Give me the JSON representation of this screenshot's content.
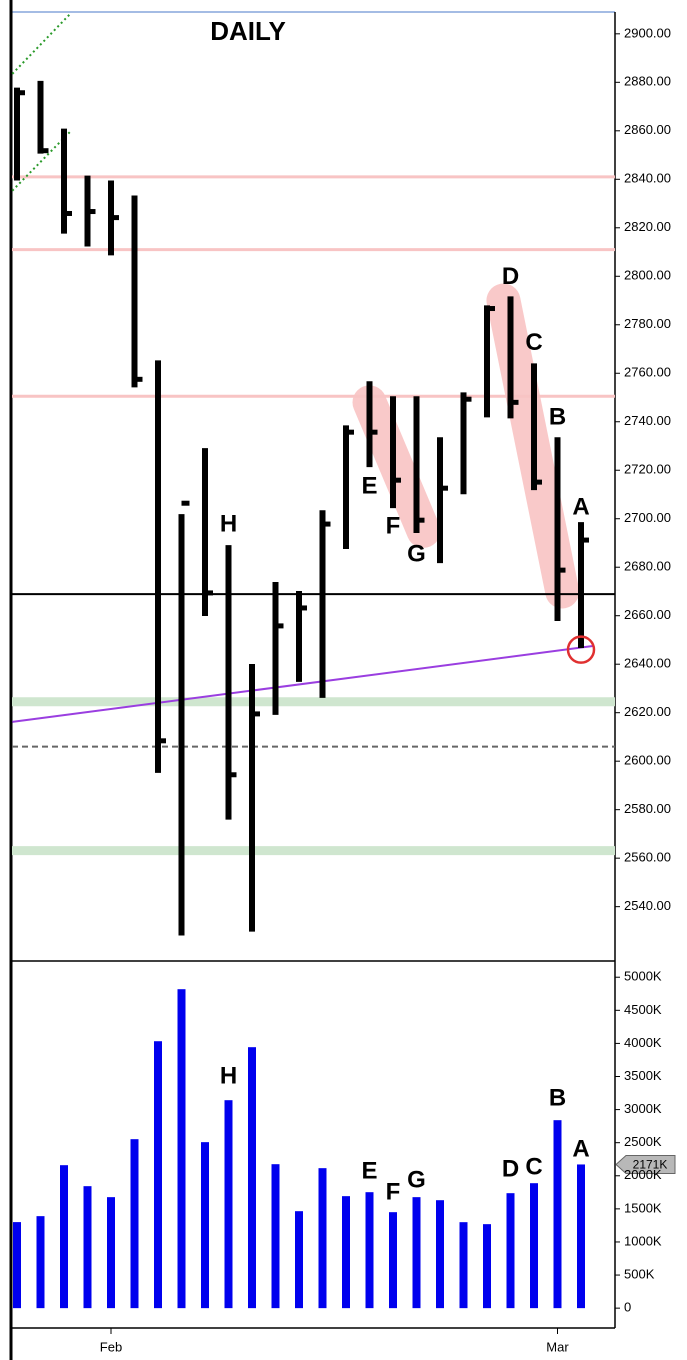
{
  "chart_data": [
    {
      "type": "ohlc",
      "title": "DAILY",
      "color": "#000000",
      "high": [
        2877.8,
        2880.6,
        2860.9,
        2841.5,
        2839.5,
        2833.3,
        2765.3,
        2701.9,
        2729.1,
        2689.1,
        2640.1,
        2673.9,
        2670.2,
        2703.5,
        2738.5,
        2756.7,
        2750.5,
        2750.5,
        2733.6,
        2752.1,
        2788.0,
        2791.7,
        2764.1,
        2733.6,
        2698.6
      ],
      "low": [
        2839.5,
        2850.6,
        2817.6,
        2812.3,
        2808.6,
        2754.2,
        2595.2,
        2528.1,
        2659.9,
        2575.9,
        2529.7,
        2619.1,
        2632.7,
        2626.1,
        2687.5,
        2721.3,
        2704.4,
        2694.1,
        2681.7,
        2710.1,
        2741.8,
        2741.4,
        2711.8,
        2657.8,
        2646.7
      ],
      "close": [
        2875.7,
        2851.8,
        2825.9,
        2826.7,
        2824.2,
        2757.5,
        2608.4,
        2706.4,
        2669.4,
        2594.4,
        2619.5,
        2655.8,
        2663.2,
        2697.8,
        2735.7,
        2735.7,
        2715.9,
        2699.4,
        2712.6,
        2749.3,
        2786.7,
        2748.0,
        2715.1,
        2678.8,
        2691.2
      ],
      "ylim": [
        2518,
        2909
      ],
      "yticks": [
        {
          "value": 2540,
          "label": "2540.00"
        },
        {
          "value": 2560,
          "label": "2560.00"
        },
        {
          "value": 2580,
          "label": "2580.00"
        },
        {
          "value": 2600,
          "label": "2600.00"
        },
        {
          "value": 2620,
          "label": "2620.00"
        },
        {
          "value": 2640,
          "label": "2640.00"
        },
        {
          "value": 2660,
          "label": "2660.00"
        },
        {
          "value": 2680,
          "label": "2680.00"
        },
        {
          "value": 2700,
          "label": "2700.00"
        },
        {
          "value": 2720,
          "label": "2720.00"
        },
        {
          "value": 2740,
          "label": "2740.00"
        },
        {
          "value": 2760,
          "label": "2760.00"
        },
        {
          "value": 2780,
          "label": "2780.00"
        },
        {
          "value": 2800,
          "label": "2800.00"
        },
        {
          "value": 2820,
          "label": "2820.00"
        },
        {
          "value": 2840,
          "label": "2840.00"
        },
        {
          "value": 2860,
          "label": "2860.00"
        },
        {
          "value": 2880,
          "label": "2880.00"
        },
        {
          "value": 2900,
          "label": "2900.00"
        }
      ],
      "hlines": [
        {
          "y": 2841,
          "color": "#f8c4c4",
          "width": 3
        },
        {
          "y": 2811,
          "color": "#f8c4c4",
          "width": 3
        },
        {
          "y": 2750.5,
          "color": "#f8c4c4",
          "width": 3
        },
        {
          "y": 2668.9,
          "color": "#000000",
          "width": 2
        },
        {
          "y": 2606,
          "color": "#666666",
          "width": 2,
          "dashed": true
        },
        {
          "y": 2624.5,
          "color": "#cfe6cf",
          "width": 9
        },
        {
          "y": 2563.1,
          "color": "#cfe6cf",
          "width": 9
        }
      ],
      "trendlines": [
        {
          "x": [
            -0.2,
            24.5
          ],
          "y": [
            2616.2,
            2647.5
          ],
          "color": "#9a3ee0"
        },
        {
          "x": [
            -0.2,
            2.3
          ],
          "y": [
            2883.5,
            2908.6
          ],
          "color": "#2a9a2a",
          "dotted": true
        },
        {
          "x": [
            -0.2,
            2.3
          ],
          "y": [
            2835.3,
            2860
          ],
          "color": "#2a9a2a",
          "dotted": true
        }
      ],
      "highlights": [
        {
          "x": [
            15,
            17.3
          ],
          "y": [
            2748,
            2695
          ]
        },
        {
          "x": [
            20.7,
            23.2
          ],
          "y": [
            2790,
            2670
          ]
        }
      ],
      "marker": {
        "x": 24,
        "y": 2646,
        "color": "#e03030"
      },
      "annotations": [
        {
          "text": "H",
          "x": 9,
          "y": 2697.4
        },
        {
          "text": "E",
          "x": 15,
          "y": 2713
        },
        {
          "text": "F",
          "x": 16,
          "y": 2696.5
        },
        {
          "text": "G",
          "x": 17,
          "y": 2685
        },
        {
          "text": "D",
          "x": 21,
          "y": 2799.5
        },
        {
          "text": "C",
          "x": 22,
          "y": 2772.3
        },
        {
          "text": "B",
          "x": 23,
          "y": 2741.4
        },
        {
          "text": "A",
          "x": 24,
          "y": 2704.4
        }
      ]
    },
    {
      "type": "bar",
      "color": "#0000ee",
      "categories": [
        null,
        null,
        null,
        null,
        "Feb",
        null,
        null,
        null,
        null,
        null,
        null,
        null,
        null,
        null,
        null,
        null,
        null,
        null,
        null,
        null,
        null,
        null,
        null,
        "Mar",
        null
      ],
      "values": [
        1300,
        1390,
        2160,
        1843,
        1677,
        2553,
        4033,
        4819,
        2508,
        3142,
        3943,
        2175,
        1465,
        2115,
        1692,
        1752,
        1450,
        1677,
        1631,
        1299,
        1269,
        1737,
        1888,
        2840,
        2171
      ],
      "ylim": [
        -300,
        5230
      ],
      "yticks": [
        0,
        {
          "value": 500,
          "label": "500K"
        },
        {
          "value": 1000,
          "label": "1000K"
        },
        {
          "value": 1500,
          "label": "1500K"
        },
        {
          "value": 2000,
          "label": "2000K"
        },
        {
          "value": 2500,
          "label": "2500K"
        },
        {
          "value": 3000,
          "label": "3000K"
        },
        {
          "value": 3500,
          "label": "3500K"
        },
        {
          "value": 4000,
          "label": "4000K"
        },
        {
          "value": 4500,
          "label": "4500K"
        },
        {
          "value": 5000,
          "label": "5000K"
        }
      ],
      "current": {
        "value": 2171,
        "label": "2171K"
      },
      "annotations": [
        {
          "text": "H",
          "x": 9,
          "y": 3489
        },
        {
          "text": "E",
          "x": 15,
          "y": 2054
        },
        {
          "text": "F",
          "x": 16,
          "y": 1737
        },
        {
          "text": "G",
          "x": 17,
          "y": 1918
        },
        {
          "text": "D",
          "x": 21,
          "y": 2085
        },
        {
          "text": "C",
          "x": 22,
          "y": 2115
        },
        {
          "text": "B",
          "x": 23,
          "y": 3157
        },
        {
          "text": "A",
          "x": 24,
          "y": 2387
        }
      ]
    }
  ]
}
